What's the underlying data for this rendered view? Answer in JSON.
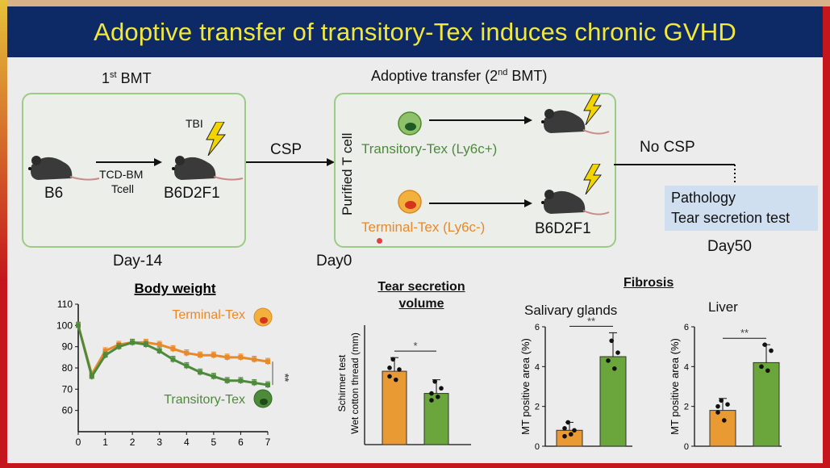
{
  "title": "Adoptive transfer of transitory-Tex induces chronic GVHD",
  "schema": {
    "bmt1": {
      "label": "1",
      "sup": "st",
      "rest": " BMT"
    },
    "bmt2": {
      "label": "Adoptive transfer (2",
      "sup": "nd",
      "rest": " BMT)"
    },
    "b6": "B6",
    "tcd_bm": "TCD-BM",
    "tcell": "Tcell",
    "tbi": "TBI",
    "b6d2f1": "B6D2F1",
    "csp": "CSP",
    "purified": "Purified T cell",
    "transitory": "Transitory-Tex (Ly6c+)",
    "terminal": "Terminal-Tex (Ly6c-)",
    "b6d2f1_2": "B6D2F1",
    "no_csp": "No CSP",
    "pathology": "Pathology",
    "tear_test": "Tear secretion test",
    "day_minus14": "Day-14",
    "day0": "Day0",
    "day50": "Day50"
  },
  "colors": {
    "orange": "#e8892a",
    "green": "#4d8a3a",
    "bar_orange": "#e99a33",
    "bar_green": "#6aa63c",
    "box_border": "#9ccb86",
    "header_bg": "#0d2a66",
    "header_text": "#f2e83a",
    "result_box": "#cfdff0"
  },
  "chart_data": [
    {
      "type": "line",
      "title": "Body weight",
      "x": [
        0,
        0.5,
        1,
        1.5,
        2,
        2.5,
        3,
        3.5,
        4,
        4.5,
        5,
        5.5,
        6,
        6.5,
        7
      ],
      "xticks": [
        "0",
        "1",
        "2",
        "3",
        "4",
        "5",
        "6",
        "7"
      ],
      "ylim": [
        50,
        110
      ],
      "yticks": [
        "60",
        "70",
        "80",
        "90",
        "100",
        "110"
      ],
      "series": [
        {
          "name": "Terminal-Tex",
          "values": [
            100,
            77,
            88,
            91,
            92,
            92,
            91,
            89,
            87,
            86,
            86,
            85,
            85,
            84,
            83
          ]
        },
        {
          "name": "Transitory-Tex",
          "values": [
            100,
            76,
            86,
            90,
            92,
            91,
            88,
            84,
            81,
            78,
            76,
            74,
            74,
            73,
            72
          ]
        }
      ],
      "annotation": "**"
    },
    {
      "type": "bar",
      "title": "Tear secretion volume",
      "ylabel": "Schirmer test Wet cotton thread (mm)",
      "categories": [
        "Terminal-Tex",
        "Transitory-Tex"
      ],
      "values": [
        4.3,
        3.0
      ],
      "annotation": "*"
    },
    {
      "type": "bar",
      "group_title": "Fibrosis",
      "title": "Salivary glands",
      "ylabel": "MT positive area (%)",
      "ylim": [
        0,
        6
      ],
      "yticks": [
        "0",
        "2",
        "4",
        "6"
      ],
      "categories": [
        "Terminal-Tex",
        "Transitory-Tex"
      ],
      "values": [
        0.8,
        4.5
      ],
      "annotation": "**"
    },
    {
      "type": "bar",
      "title": "Liver",
      "ylabel": "MT positive area (%)",
      "ylim": [
        0,
        6
      ],
      "yticks": [
        "0",
        "2",
        "4",
        "6"
      ],
      "categories": [
        "Terminal-Tex",
        "Transitory-Tex"
      ],
      "values": [
        1.8,
        4.2
      ],
      "annotation": "**"
    }
  ]
}
